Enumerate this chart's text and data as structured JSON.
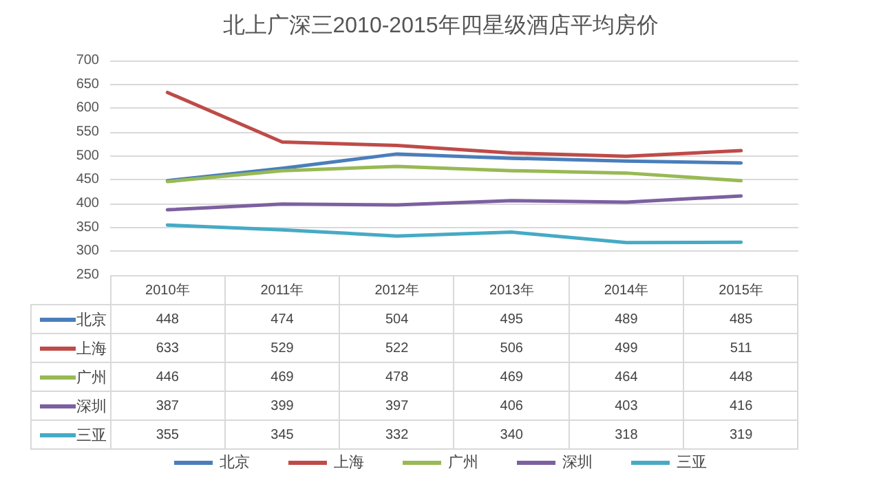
{
  "chart_data": {
    "type": "line",
    "title": "北上广深三2010-2015年四星级酒店平均房价",
    "categories": [
      "2010年",
      "2011年",
      "2012年",
      "2013年",
      "2014年",
      "2015年"
    ],
    "series": [
      {
        "name": "北京",
        "color": "#4a7ebb",
        "values": [
          448,
          474,
          504,
          495,
          489,
          485
        ]
      },
      {
        "name": "上海",
        "color": "#be4b48",
        "values": [
          633,
          529,
          522,
          506,
          499,
          511
        ]
      },
      {
        "name": "广州",
        "color": "#98b954",
        "values": [
          446,
          469,
          478,
          469,
          464,
          448
        ]
      },
      {
        "name": "深圳",
        "color": "#7d60a0",
        "values": [
          387,
          399,
          397,
          406,
          403,
          416
        ]
      },
      {
        "name": "三亚",
        "color": "#46aac5",
        "values": [
          355,
          345,
          332,
          340,
          318,
          319
        ]
      }
    ],
    "ylim": [
      250,
      700
    ],
    "yticks": [
      250,
      300,
      350,
      400,
      450,
      500,
      550,
      600,
      650,
      700
    ],
    "grid": "y",
    "legend": "bottom",
    "marker": "none",
    "line_style": "solid",
    "data_labels": true
  }
}
